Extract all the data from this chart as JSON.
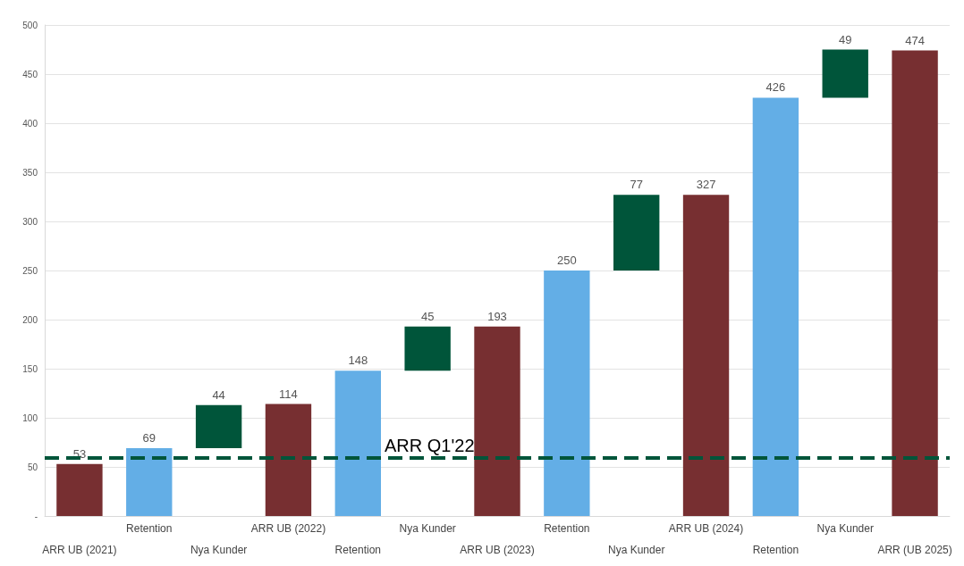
{
  "chart_data": {
    "type": "bar",
    "categories": [
      "ARR UB (2021)",
      "Retention",
      "Nya Kunder",
      "ARR UB (2022)",
      "Retention",
      "Nya Kunder",
      "ARR UB (2023)",
      "Retention",
      "Nya Kunder",
      "ARR UB (2024)",
      "Retention",
      "Nya Kunder",
      "ARR (UB 2025)"
    ],
    "values": [
      53,
      69,
      44,
      114,
      148,
      45,
      193,
      250,
      77,
      327,
      426,
      49,
      474
    ],
    "base": [
      0,
      0,
      69,
      0,
      0,
      148,
      0,
      0,
      250,
      0,
      0,
      426,
      0
    ],
    "colors": [
      "#772f31",
      "#63aee6",
      "#00553a",
      "#772f31",
      "#63aee6",
      "#00553a",
      "#772f31",
      "#63aee6",
      "#00553a",
      "#772f31",
      "#63aee6",
      "#00553a",
      "#772f31"
    ],
    "ylim": [
      0,
      500
    ],
    "yticks": [
      {
        "value": 0,
        "label": "-"
      },
      50,
      100,
      150,
      200,
      250,
      300,
      350,
      400,
      450,
      500
    ],
    "grid": "y",
    "data_labels": true,
    "ref_lines": [
      {
        "axis": "y",
        "value": 59,
        "label": "ARR Q1'22",
        "color": "#00553a",
        "line_style": "dashed"
      }
    ]
  }
}
